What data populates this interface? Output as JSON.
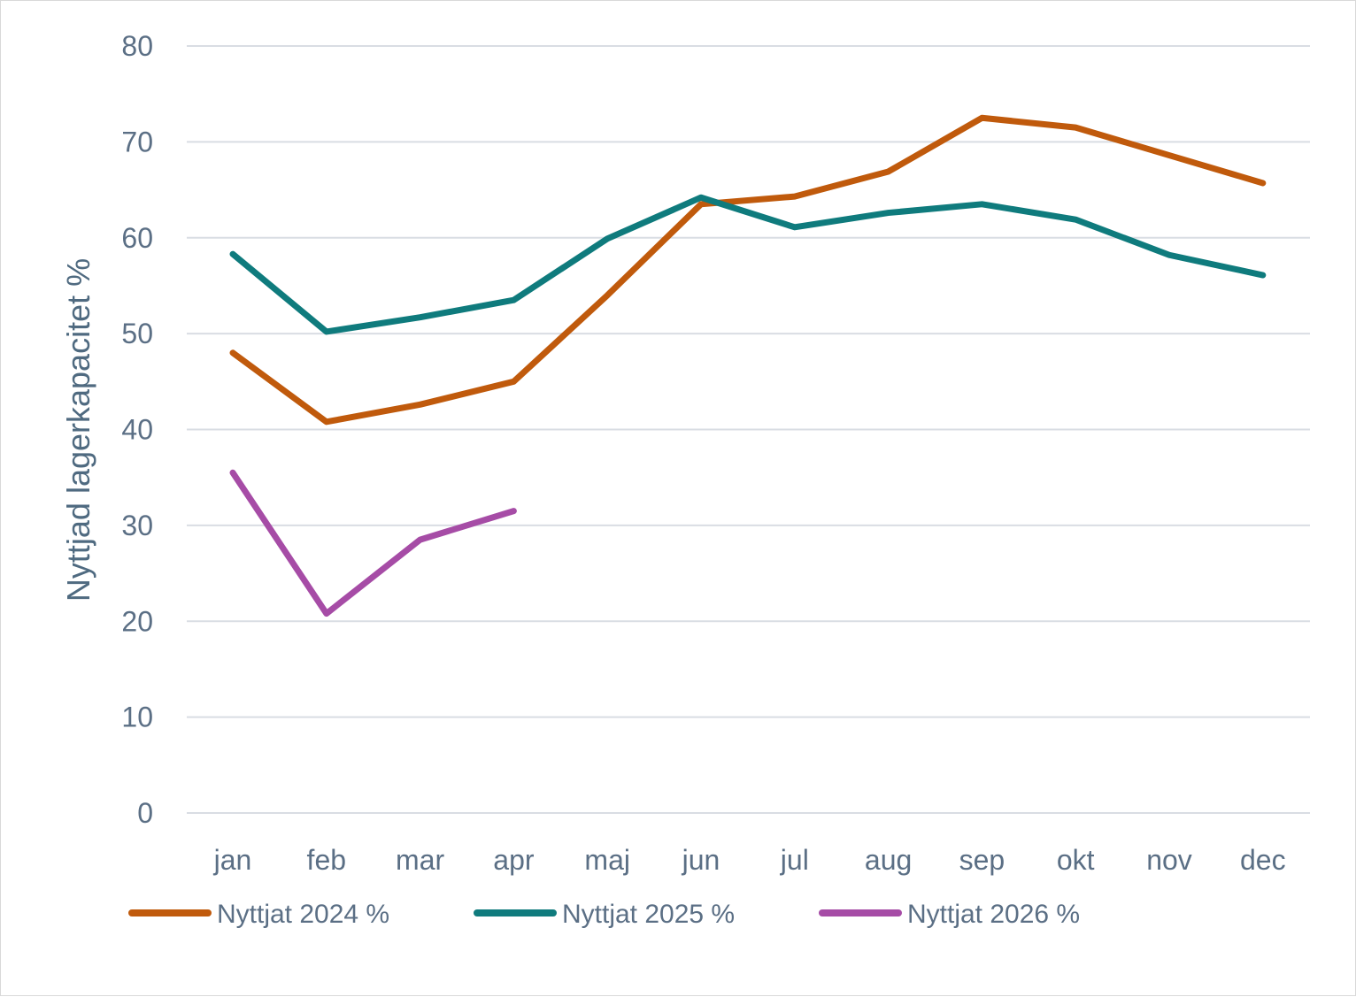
{
  "chart_data": {
    "type": "line",
    "categories": [
      "jan",
      "feb",
      "mar",
      "apr",
      "maj",
      "jun",
      "jul",
      "aug",
      "sep",
      "okt",
      "nov",
      "dec"
    ],
    "series": [
      {
        "name": "Nyttjat 2024 %",
        "color": "#c05a0c",
        "values": [
          48.0,
          40.8,
          42.6,
          45.0,
          54.0,
          63.5,
          64.3,
          66.9,
          72.5,
          71.5,
          68.6,
          65.7
        ]
      },
      {
        "name": "Nyttjat 2025 %",
        "color": "#0f7b7d",
        "values": [
          58.3,
          50.2,
          51.7,
          53.5,
          59.9,
          64.2,
          61.1,
          62.6,
          63.5,
          61.9,
          58.2,
          56.1
        ]
      },
      {
        "name": "Nyttjat 2026 %",
        "color": "#a64ca6",
        "values": [
          35.5,
          20.8,
          28.5,
          31.5,
          null,
          null,
          null,
          null,
          null,
          null,
          null,
          null
        ]
      }
    ],
    "ylabel": "Nyttjad lagerkapacitet %",
    "xlabel": "",
    "ylim": [
      0,
      80
    ],
    "yticks": [
      0,
      10,
      20,
      30,
      40,
      50,
      60,
      70,
      80
    ],
    "grid": true,
    "legend": "bottom"
  }
}
